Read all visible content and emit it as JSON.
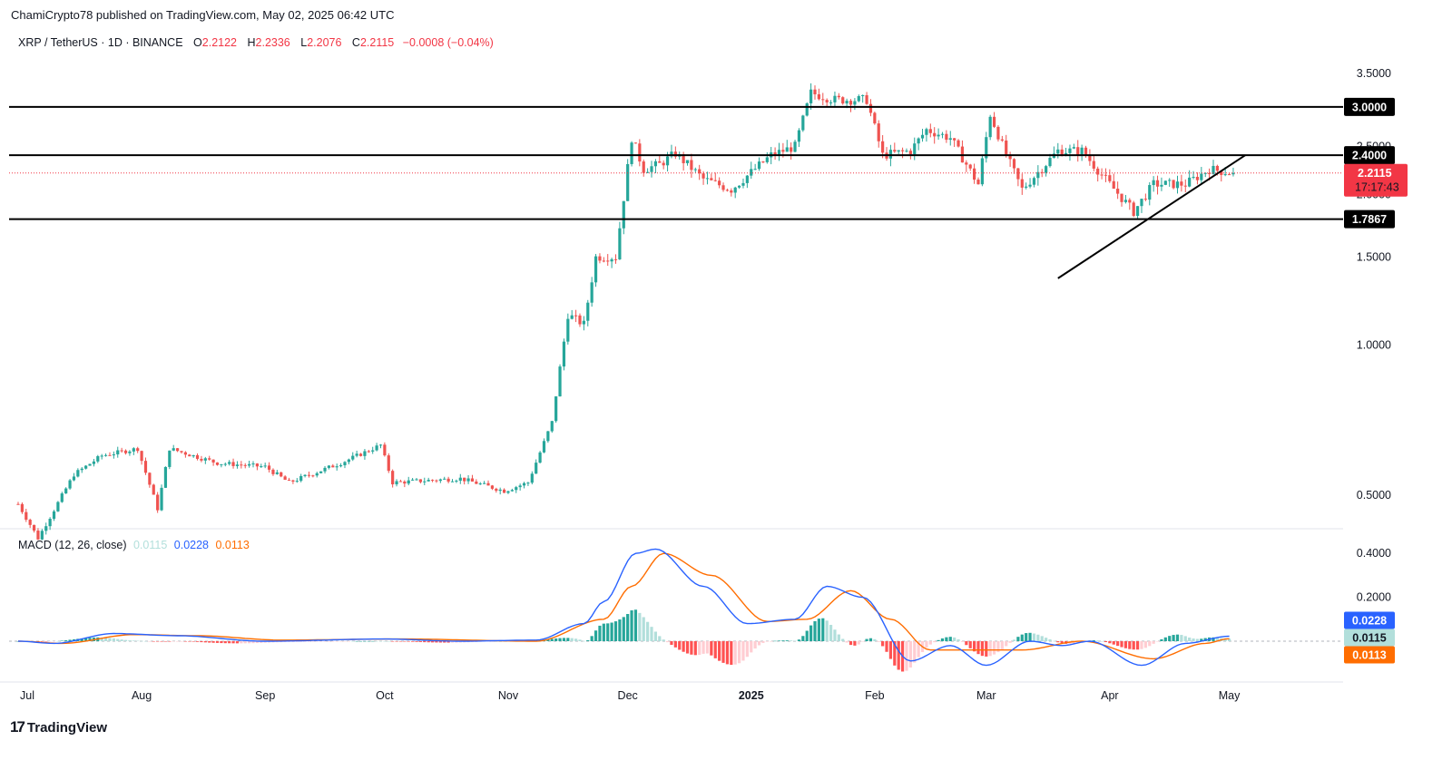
{
  "header": {
    "published_line": "ChamiCrypto78 published on TradingView.com, May 02, 2025 06:42 UTC",
    "symbol": "XRP / TetherUS · 1D · BINANCE",
    "open_label": "O",
    "open": "2.2122",
    "high_label": "H",
    "high": "2.2336",
    "low_label": "L",
    "low": "2.2076",
    "close_label": "C",
    "close": "2.2115",
    "change": "−0.0008 (−0.04%)"
  },
  "macd_legend": {
    "title": "MACD (12, 26, close)",
    "histogram": "0.0115",
    "macd": "0.0228",
    "signal": "0.0113"
  },
  "footer": {
    "logo_text": "TradingView"
  },
  "colors": {
    "up": "#26a69a",
    "down": "#ef5350",
    "macd_line": "#2962ff",
    "signal_line": "#ff6d00",
    "hist_up": "#26a69a",
    "hist_up_light": "#b2dfdb",
    "hist_down": "#ff5252",
    "hist_down_light": "#ffcdd2",
    "level_line": "#000000",
    "price_tag": "#f23645"
  },
  "chart_data": {
    "type": "candlestick",
    "x_labels": [
      "Jul",
      "Aug",
      "Sep",
      "Oct",
      "Nov",
      "Dec",
      "2025",
      "Feb",
      "Mar",
      "Apr",
      "May"
    ],
    "y_ticks": [
      "3.5000",
      "2.5000",
      "2.0000",
      "1.5000",
      "1.0000",
      "0.5000"
    ],
    "y_scale": "log",
    "horizontal_levels": [
      {
        "value": 3.0,
        "label": "3.0000"
      },
      {
        "value": 2.4,
        "label": "2.4000"
      },
      {
        "value": 1.7867,
        "label": "1.7867"
      }
    ],
    "current_price": {
      "value": 2.2115,
      "label": "2.2115",
      "countdown": "17:17:43"
    },
    "trendline": {
      "start": {
        "date": "2025-03-19",
        "price": 1.36
      },
      "end": {
        "date": "2025-05-05",
        "price": 2.4
      }
    },
    "price_path": [
      {
        "date": "2024-07-01",
        "price": 0.48
      },
      {
        "date": "2024-07-06",
        "price": 0.41
      },
      {
        "date": "2024-07-15",
        "price": 0.55
      },
      {
        "date": "2024-07-22",
        "price": 0.6
      },
      {
        "date": "2024-07-31",
        "price": 0.62
      },
      {
        "date": "2024-08-05",
        "price": 0.47
      },
      {
        "date": "2024-08-08",
        "price": 0.62
      },
      {
        "date": "2024-08-20",
        "price": 0.58
      },
      {
        "date": "2024-09-01",
        "price": 0.57
      },
      {
        "date": "2024-09-07",
        "price": 0.53
      },
      {
        "date": "2024-09-20",
        "price": 0.58
      },
      {
        "date": "2024-09-30",
        "price": 0.63
      },
      {
        "date": "2024-10-03",
        "price": 0.53
      },
      {
        "date": "2024-10-20",
        "price": 0.54
      },
      {
        "date": "2024-10-31",
        "price": 0.51
      },
      {
        "date": "2024-11-06",
        "price": 0.53
      },
      {
        "date": "2024-11-12",
        "price": 0.7
      },
      {
        "date": "2024-11-16",
        "price": 1.15
      },
      {
        "date": "2024-11-20",
        "price": 1.1
      },
      {
        "date": "2024-11-23",
        "price": 1.5
      },
      {
        "date": "2024-11-28",
        "price": 1.5
      },
      {
        "date": "2024-12-02",
        "price": 2.6
      },
      {
        "date": "2024-12-05",
        "price": 2.25
      },
      {
        "date": "2024-12-09",
        "price": 2.3
      },
      {
        "date": "2024-12-13",
        "price": 2.42
      },
      {
        "date": "2024-12-20",
        "price": 2.15
      },
      {
        "date": "2024-12-27",
        "price": 2.05
      },
      {
        "date": "2025-01-06",
        "price": 2.4
      },
      {
        "date": "2025-01-12",
        "price": 2.5
      },
      {
        "date": "2025-01-16",
        "price": 3.2
      },
      {
        "date": "2025-01-22",
        "price": 3.1
      },
      {
        "date": "2025-01-30",
        "price": 3.1
      },
      {
        "date": "2025-02-03",
        "price": 2.4
      },
      {
        "date": "2025-02-10",
        "price": 2.45
      },
      {
        "date": "2025-02-14",
        "price": 2.7
      },
      {
        "date": "2025-02-20",
        "price": 2.6
      },
      {
        "date": "2025-02-27",
        "price": 2.1
      },
      {
        "date": "2025-03-02",
        "price": 2.9
      },
      {
        "date": "2025-03-06",
        "price": 2.4
      },
      {
        "date": "2025-03-10",
        "price": 2.05
      },
      {
        "date": "2025-03-19",
        "price": 2.45
      },
      {
        "date": "2025-03-25",
        "price": 2.45
      },
      {
        "date": "2025-04-01",
        "price": 2.1
      },
      {
        "date": "2025-04-07",
        "price": 1.85
      },
      {
        "date": "2025-04-12",
        "price": 2.1
      },
      {
        "date": "2025-04-20",
        "price": 2.1
      },
      {
        "date": "2025-04-26",
        "price": 2.25
      },
      {
        "date": "2025-05-02",
        "price": 2.2115
      }
    ],
    "macd_y_ticks": [
      "0.4000",
      "0.2000"
    ],
    "macd_tags": {
      "macd": "0.0228",
      "histogram": "0.0115",
      "signal": "0.0113"
    },
    "macd_path": [
      {
        "date": "2024-07-01",
        "macd": 0.0
      },
      {
        "date": "2024-07-10",
        "macd": -0.01
      },
      {
        "date": "2024-07-25",
        "macd": 0.035
      },
      {
        "date": "2024-08-10",
        "macd": 0.025
      },
      {
        "date": "2024-09-01",
        "macd": 0.0
      },
      {
        "date": "2024-10-01",
        "macd": 0.01
      },
      {
        "date": "2024-10-20",
        "macd": 0.0
      },
      {
        "date": "2024-11-08",
        "macd": 0.005
      },
      {
        "date": "2024-11-20",
        "macd": 0.08
      },
      {
        "date": "2024-11-25",
        "macd": 0.18
      },
      {
        "date": "2024-12-03",
        "macd": 0.4
      },
      {
        "date": "2024-12-08",
        "macd": 0.42
      },
      {
        "date": "2024-12-20",
        "macd": 0.25
      },
      {
        "date": "2024-12-31",
        "macd": 0.08
      },
      {
        "date": "2025-01-12",
        "macd": 0.1
      },
      {
        "date": "2025-01-20",
        "macd": 0.25
      },
      {
        "date": "2025-01-29",
        "macd": 0.2
      },
      {
        "date": "2025-02-10",
        "macd": -0.09
      },
      {
        "date": "2025-02-20",
        "macd": -0.02
      },
      {
        "date": "2025-03-01",
        "macd": -0.11
      },
      {
        "date": "2025-03-12",
        "macd": 0.0
      },
      {
        "date": "2025-03-20",
        "macd": -0.02
      },
      {
        "date": "2025-03-27",
        "macd": 0.0
      },
      {
        "date": "2025-04-09",
        "macd": -0.11
      },
      {
        "date": "2025-04-20",
        "macd": -0.01
      },
      {
        "date": "2025-05-01",
        "macd": 0.0228
      }
    ],
    "signal_path": [
      {
        "date": "2024-07-01",
        "signal": 0.0
      },
      {
        "date": "2024-07-12",
        "signal": -0.01
      },
      {
        "date": "2024-07-30",
        "signal": 0.03
      },
      {
        "date": "2024-08-15",
        "signal": 0.025
      },
      {
        "date": "2024-09-05",
        "signal": 0.005
      },
      {
        "date": "2024-10-05",
        "signal": 0.01
      },
      {
        "date": "2024-11-08",
        "signal": 0.0
      },
      {
        "date": "2024-11-25",
        "signal": 0.1
      },
      {
        "date": "2024-12-02",
        "signal": 0.25
      },
      {
        "date": "2024-12-10",
        "signal": 0.4
      },
      {
        "date": "2024-12-22",
        "signal": 0.3
      },
      {
        "date": "2025-01-05",
        "signal": 0.09
      },
      {
        "date": "2025-01-15",
        "signal": 0.1
      },
      {
        "date": "2025-01-26",
        "signal": 0.23
      },
      {
        "date": "2025-02-05",
        "signal": 0.1
      },
      {
        "date": "2025-02-15",
        "signal": -0.04
      },
      {
        "date": "2025-03-01",
        "signal": -0.04
      },
      {
        "date": "2025-03-10",
        "signal": -0.04
      },
      {
        "date": "2025-03-25",
        "signal": 0.0
      },
      {
        "date": "2025-04-12",
        "signal": -0.08
      },
      {
        "date": "2025-04-25",
        "signal": -0.01
      },
      {
        "date": "2025-05-01",
        "signal": 0.0113
      }
    ]
  }
}
